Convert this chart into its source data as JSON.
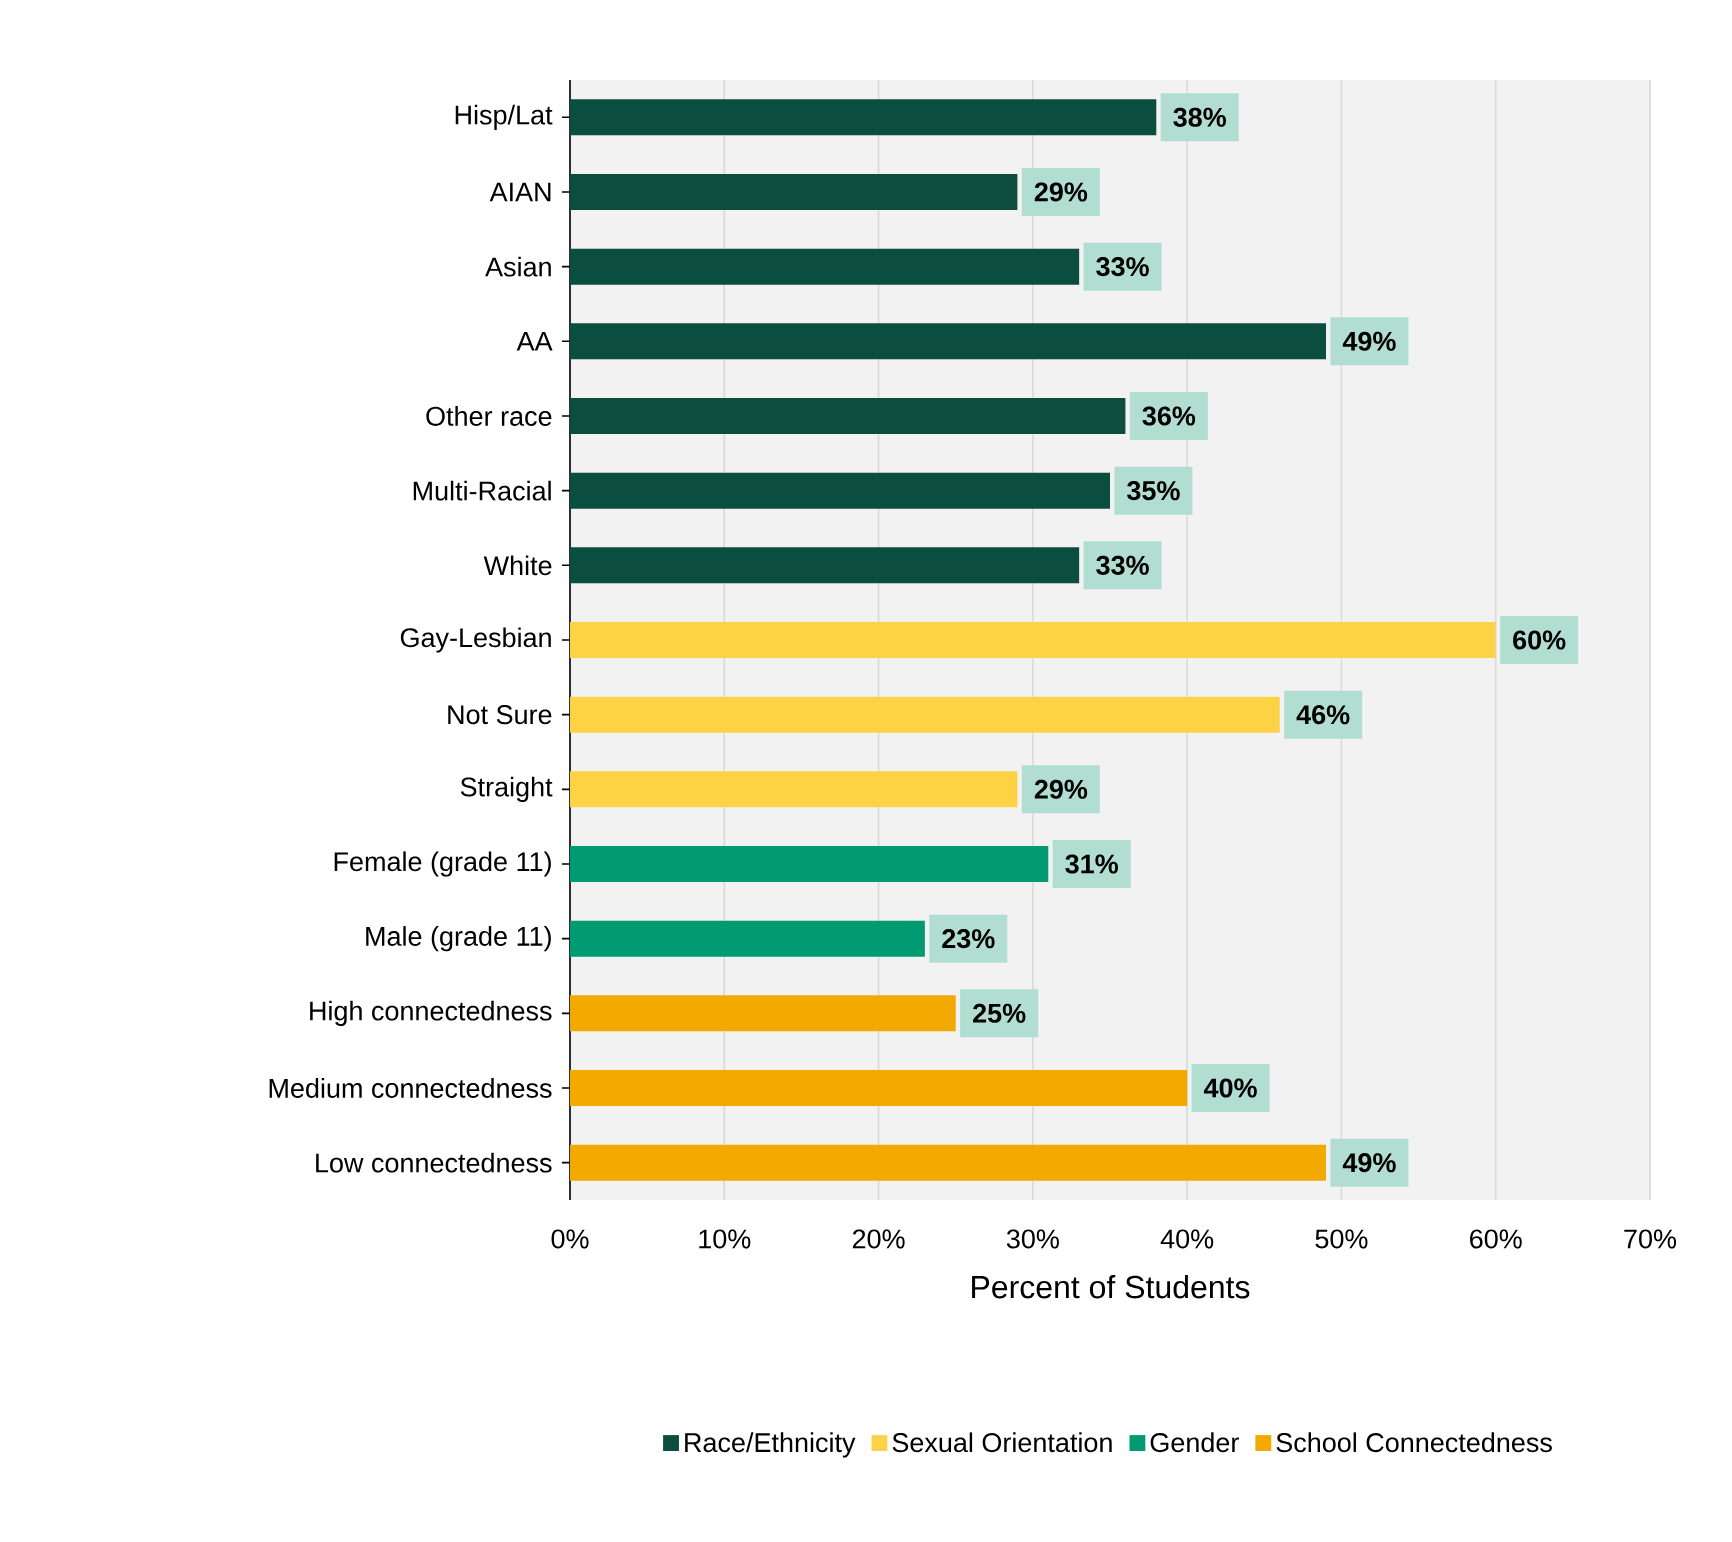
{
  "chart_data": {
    "type": "bar",
    "orientation": "horizontal",
    "categories": [
      "Hisp/Lat",
      "AIAN",
      "Asian",
      "AA",
      "Other race",
      "Multi-Racial",
      "White",
      "Gay-Lesbian",
      "Not Sure",
      "Straight",
      "Female (grade 11)",
      "Male (grade 11)",
      "High connectedness",
      "Medium connectedness",
      "Low connectedness"
    ],
    "series": [
      {
        "name": "Race/Ethnicity",
        "color": "#0b4d3e",
        "values": [
          38,
          29,
          33,
          49,
          36,
          35,
          33,
          null,
          null,
          null,
          null,
          null,
          null,
          null,
          null
        ],
        "value_labels": [
          "38%",
          "29%",
          "33%",
          "49%",
          "36%",
          "35%",
          "33%",
          null,
          null,
          null,
          null,
          null,
          null,
          null,
          null
        ]
      },
      {
        "name": "Sexual Orientation",
        "color": "#fdd345",
        "values": [
          null,
          null,
          null,
          null,
          null,
          null,
          null,
          60,
          46,
          29,
          null,
          null,
          null,
          null,
          null
        ],
        "value_labels": [
          null,
          null,
          null,
          null,
          null,
          null,
          null,
          "60%",
          "46%",
          "29%",
          null,
          null,
          null,
          null,
          null
        ]
      },
      {
        "name": "Gender",
        "color": "#009a73",
        "values": [
          null,
          null,
          null,
          null,
          null,
          null,
          null,
          null,
          null,
          null,
          31,
          23,
          null,
          null,
          null
        ],
        "value_labels": [
          null,
          null,
          null,
          null,
          null,
          null,
          null,
          null,
          null,
          null,
          "31%",
          "23%",
          null,
          null,
          null
        ]
      },
      {
        "name": "School Connectedness",
        "color": "#f2a900",
        "values": [
          null,
          null,
          null,
          null,
          null,
          null,
          null,
          null,
          null,
          null,
          null,
          null,
          25,
          40,
          49
        ],
        "value_labels": [
          null,
          null,
          null,
          null,
          null,
          null,
          null,
          null,
          null,
          null,
          null,
          null,
          "25%",
          "40%",
          "49%"
        ]
      }
    ],
    "xlabel": "Percent of Students",
    "xlim": [
      0,
      70
    ],
    "xticks": [
      {
        "value": 0,
        "label": "0%"
      },
      {
        "value": 10,
        "label": "10%"
      },
      {
        "value": 20,
        "label": "20%"
      },
      {
        "value": 30,
        "label": "30%"
      },
      {
        "value": 40,
        "label": "40%"
      },
      {
        "value": 50,
        "label": "50%"
      },
      {
        "value": 60,
        "label": "60%"
      },
      {
        "value": 70,
        "label": "70%"
      }
    ],
    "grid": "x",
    "legend": "bottom"
  }
}
